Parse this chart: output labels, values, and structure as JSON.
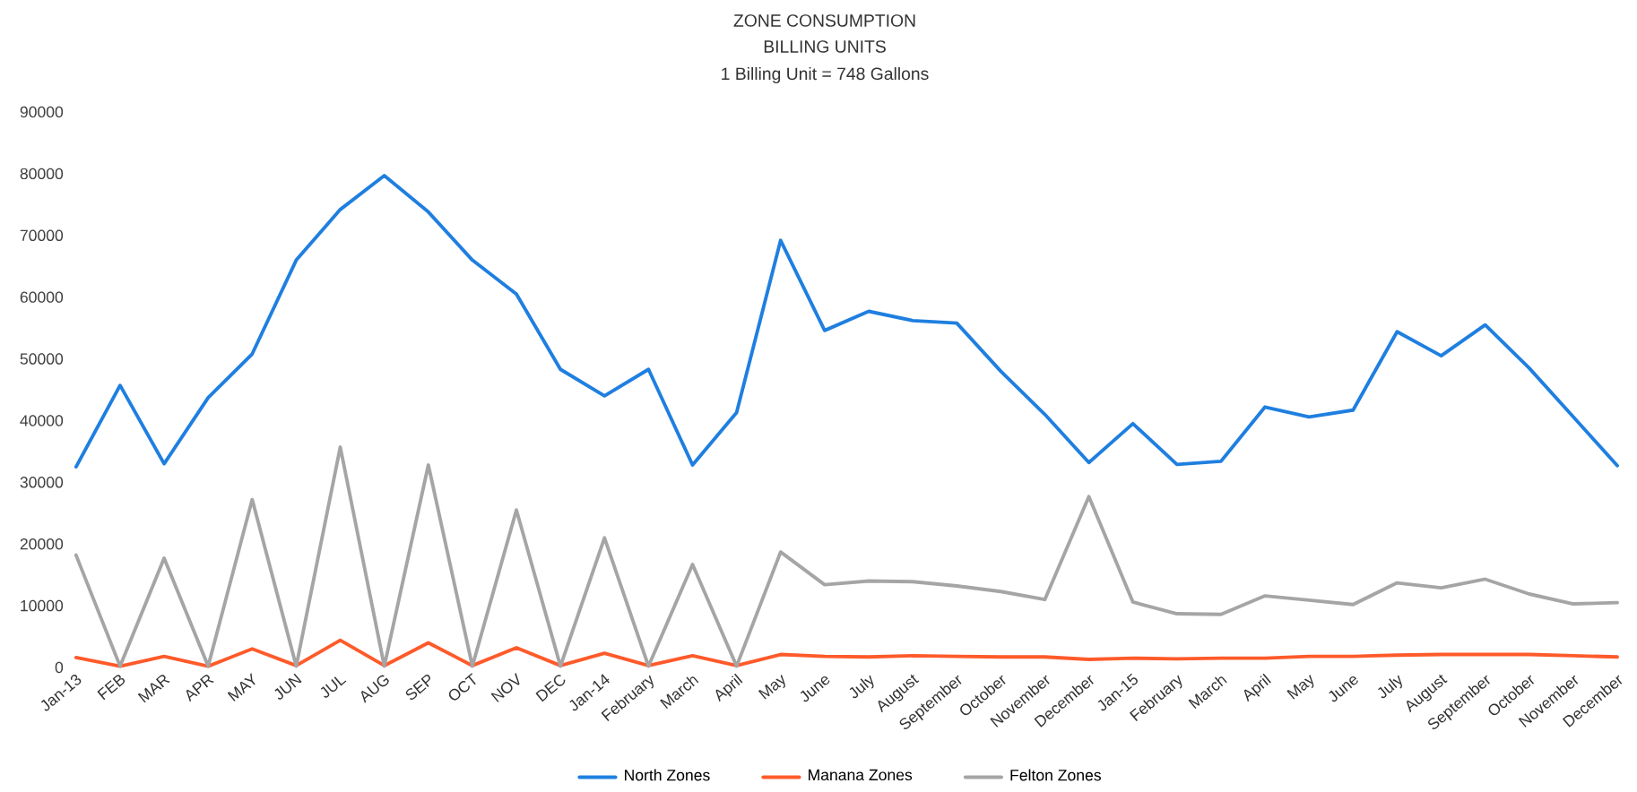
{
  "chart_data": {
    "type": "line",
    "title": "ZONE CONSUMPTION",
    "subtitle": "BILLING UNITS",
    "annotations": [
      "1 Billing Unit = 748 Gallons"
    ],
    "categories": [
      "Jan-13",
      "FEB",
      "MAR",
      "APR",
      "MAY",
      "JUN",
      "JUL",
      "AUG",
      "SEP",
      "OCT",
      "NOV",
      "DEC",
      "Jan-14",
      "February",
      "March",
      "April",
      "May",
      "June",
      "July",
      "August",
      "September",
      "October",
      "November",
      "December",
      "Jan-15",
      "February",
      "March",
      "April",
      "May",
      "June",
      "July",
      "August",
      "September",
      "October",
      "November",
      "December"
    ],
    "series": [
      {
        "name": "North Zones",
        "color": "#1f7fe0",
        "values": [
          32500,
          45700,
          33000,
          43700,
          50800,
          66000,
          74200,
          79700,
          73800,
          66000,
          60500,
          48300,
          44000,
          48300,
          32800,
          41300,
          69200,
          54600,
          57700,
          56200,
          55800,
          48000,
          41000,
          33200,
          39500,
          32900,
          33400,
          42200,
          40600,
          41700,
          54400,
          50500,
          55500,
          48500,
          40600,
          32700
        ]
      },
      {
        "name": "Manana Zones",
        "color": "#ff5a2a",
        "values": [
          1600,
          200,
          1800,
          200,
          3000,
          300,
          4400,
          300,
          4000,
          300,
          3200,
          300,
          2300,
          300,
          1900,
          300,
          2100,
          1800,
          1700,
          1900,
          1800,
          1700,
          1700,
          1300,
          1500,
          1400,
          1500,
          1500,
          1800,
          1800,
          2000,
          2100,
          2100,
          2100,
          1900,
          1700
        ]
      },
      {
        "name": "Felton Zones",
        "color": "#a5a5a5",
        "values": [
          18200,
          200,
          17700,
          200,
          27200,
          200,
          35700,
          200,
          32800,
          200,
          25500,
          200,
          21000,
          200,
          16700,
          200,
          18700,
          13400,
          14000,
          13900,
          13200,
          12300,
          11000,
          27700,
          10600,
          8700,
          8600,
          11600,
          10900,
          10200,
          13700,
          12900,
          14300,
          11900,
          10300,
          10500
        ]
      }
    ],
    "ylim": [
      0,
      90000
    ],
    "yticks": [
      0,
      10000,
      20000,
      30000,
      40000,
      50000,
      60000,
      70000,
      80000,
      90000
    ],
    "grid": false,
    "legend": "bottom",
    "marker": "none",
    "line_style": "solid"
  }
}
